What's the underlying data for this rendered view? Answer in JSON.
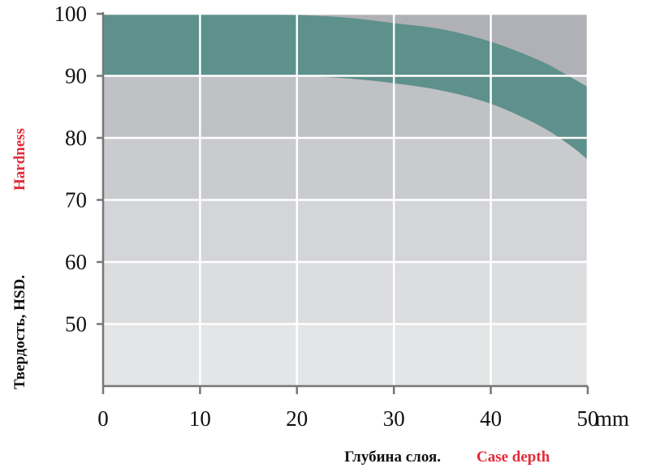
{
  "chart_data": {
    "type": "area",
    "x_unit": "mm",
    "xlabel": {
      "ru": "Глубина слоя.",
      "en": "Case depth"
    },
    "ylabel": {
      "ru": "Твердость, HSD.",
      "en": "Hardness"
    },
    "xlim": [
      0,
      50
    ],
    "ylim": [
      40,
      100
    ],
    "x_ticks": [
      0,
      10,
      20,
      30,
      40,
      50
    ],
    "y_ticks": [
      50,
      60,
      70,
      80,
      90,
      100
    ],
    "grid": true,
    "band": {
      "x": [
        0,
        10,
        15,
        20,
        25,
        30,
        35,
        40,
        45,
        48,
        50
      ],
      "upper": [
        100,
        100,
        100,
        99.8,
        99.4,
        98.5,
        97.5,
        95.5,
        92.5,
        90,
        88.2
      ],
      "lower": [
        90,
        90,
        90,
        90,
        89.6,
        88.8,
        87.6,
        85.5,
        82,
        79,
        76.5
      ]
    },
    "colors": {
      "band": "#5e918b",
      "bg_90_100": "#b0b1b6",
      "bg_80_90": "#c0c1c5",
      "bg_70_80": "#cacbce",
      "bg_60_70": "#d4d5d8",
      "bg_50_60": "#dcdddf",
      "bg_40_50": "#e4e5e7",
      "grid": "#ffffff",
      "axis": "#777777",
      "label_en": "#e32a3a",
      "label_ru": "#111111"
    }
  }
}
